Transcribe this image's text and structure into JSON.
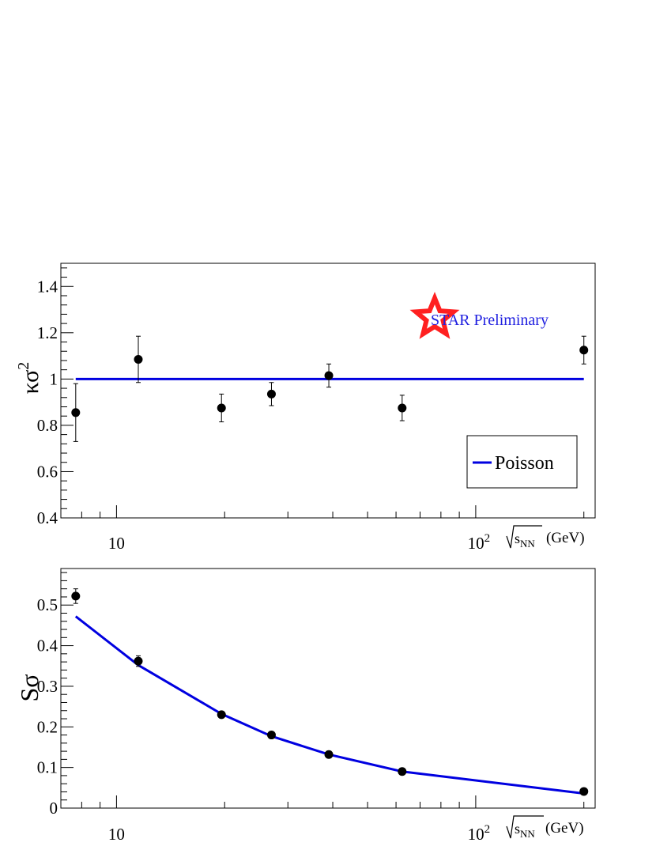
{
  "chart_data": [
    {
      "type": "scatter",
      "ylabel": "κσ",
      "ylabel_sup": "2",
      "xlabel_main": "s",
      "xlabel_sub": "NN",
      "xlabel_unit": "(GeV)",
      "x_scale": "log",
      "xlim": [
        7.0,
        215
      ],
      "ylim": [
        0.4,
        1.5
      ],
      "y_ticks": [
        0.4,
        0.6,
        0.8,
        1.0,
        1.2,
        1.4
      ],
      "y_tick_labels": [
        "0.4",
        "0.6",
        "0.8",
        "1",
        "1.2",
        "1.4"
      ],
      "x_tick_labels": [
        {
          "value": 10,
          "base": "10",
          "exp": ""
        },
        {
          "value": 100,
          "base": "10",
          "exp": "2"
        }
      ],
      "annotation": "STAR Preliminary",
      "annotation_color": "#2020e0",
      "star_color": "#ff2020",
      "marker_color": "#000000",
      "line_color": "#0000e0",
      "legend": {
        "placement": "bottom-right",
        "entries": [
          "Poisson"
        ]
      },
      "points": [
        {
          "x": 7.7,
          "y": 0.855,
          "err": 0.125
        },
        {
          "x": 11.5,
          "y": 1.085,
          "err": 0.1
        },
        {
          "x": 19.6,
          "y": 0.875,
          "err": 0.06
        },
        {
          "x": 27,
          "y": 0.935,
          "err": 0.05
        },
        {
          "x": 39,
          "y": 1.015,
          "err": 0.05
        },
        {
          "x": 62.4,
          "y": 0.875,
          "err": 0.055
        },
        {
          "x": 200,
          "y": 1.125,
          "err": 0.06
        }
      ],
      "series": [
        {
          "name": "Poisson",
          "x": [
            7.7,
            200
          ],
          "y": [
            1.0,
            1.0
          ]
        }
      ]
    },
    {
      "type": "scatter",
      "ylabel": "Sσ",
      "xlabel_main": "s",
      "xlabel_sub": "NN",
      "xlabel_unit": "(GeV)",
      "x_scale": "log",
      "xlim": [
        7.0,
        215
      ],
      "ylim": [
        0,
        0.59
      ],
      "y_ticks": [
        0,
        0.1,
        0.2,
        0.3,
        0.4,
        0.5
      ],
      "y_tick_labels": [
        "0",
        "0.1",
        "0.2",
        "0.3",
        "0.4",
        "0.5"
      ],
      "x_tick_labels": [
        {
          "value": 10,
          "base": "10",
          "exp": ""
        },
        {
          "value": 100,
          "base": "10",
          "exp": "2"
        }
      ],
      "marker_color": "#000000",
      "line_color": "#0000e0",
      "points": [
        {
          "x": 7.7,
          "y": 0.522,
          "err": 0.018
        },
        {
          "x": 11.5,
          "y": 0.362,
          "err": 0.013
        },
        {
          "x": 19.6,
          "y": 0.23,
          "err": 0.006
        },
        {
          "x": 27,
          "y": 0.18,
          "err": 0.005
        },
        {
          "x": 39,
          "y": 0.132,
          "err": 0.004
        },
        {
          "x": 62.4,
          "y": 0.09,
          "err": 0.003
        },
        {
          "x": 200,
          "y": 0.041,
          "err": 0.002
        }
      ],
      "series": [
        {
          "x": [
            7.7,
            11.5,
            19.6,
            27,
            39,
            62.4,
            200
          ],
          "y": [
            0.472,
            0.352,
            0.232,
            0.177,
            0.132,
            0.09,
            0.036
          ]
        }
      ]
    }
  ]
}
